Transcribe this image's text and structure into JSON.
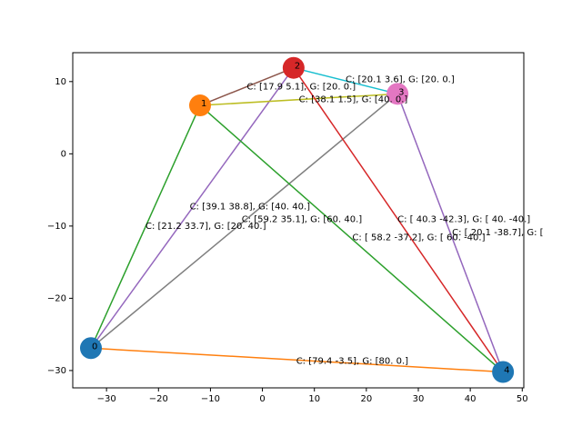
{
  "chart_data": {
    "type": "scatter",
    "title": "",
    "xlabel": "",
    "ylabel": "",
    "xlim": [
      -36.5,
      50.3
    ],
    "ylim": [
      -32.4,
      14.0
    ],
    "xticks": [
      -30,
      -20,
      -10,
      0,
      10,
      20,
      30,
      40,
      50
    ],
    "yticks": [
      10,
      0,
      -10,
      -20,
      -30
    ],
    "grid": false,
    "nodes": [
      {
        "id": "0",
        "x": -33.0,
        "y": -26.9,
        "color": "#1f77b4"
      },
      {
        "id": "1",
        "x": -12.0,
        "y": 6.7,
        "color": "#ff7f0e"
      },
      {
        "id": "2",
        "x": 6.0,
        "y": 11.9,
        "color": "#d62728"
      },
      {
        "id": "3",
        "x": 26.0,
        "y": 8.3,
        "color": "#e377c2"
      },
      {
        "id": "4",
        "x": 46.3,
        "y": -30.2,
        "color": "#1f77b4"
      }
    ],
    "edges": [
      {
        "from": "0",
        "to": "1",
        "color": "#2ca02c"
      },
      {
        "from": "0",
        "to": "2",
        "color": "#9467bd"
      },
      {
        "from": "0",
        "to": "3",
        "color": "#7f7f7f"
      },
      {
        "from": "0",
        "to": "4",
        "color": "#ff7f0e"
      },
      {
        "from": "1",
        "to": "2",
        "color": "#8c564b"
      },
      {
        "from": "1",
        "to": "3",
        "color": "#bcbd22"
      },
      {
        "from": "1",
        "to": "4",
        "color": "#2ca02c"
      },
      {
        "from": "2",
        "to": "3",
        "color": "#17becf"
      },
      {
        "from": "2",
        "to": "4",
        "color": "#d62728"
      },
      {
        "from": "3",
        "to": "4",
        "color": "#9467bd"
      }
    ],
    "annotations": [
      {
        "text": "C: [17.9  5.1], G: [20.  0.]",
        "x": -3.0,
        "y": 9.3
      },
      {
        "text": "C: [20.1  3.6], G: [20.  0.]",
        "x": 16.0,
        "y": 10.3
      },
      {
        "text": "C: [38.1  1.5], G: [40.  0.]",
        "x": 7.0,
        "y": 7.5
      },
      {
        "text": "C: [39.1 38.8], G: [40. 40.]",
        "x": -14.0,
        "y": -7.3
      },
      {
        "text": "C: [59.2 35.1], G: [60. 40.]",
        "x": -4.0,
        "y": -9.1
      },
      {
        "text": "C: [21.2 33.7], G: [20. 40.]",
        "x": -22.5,
        "y": -10.0
      },
      {
        "text": "C: [ 40.3 -42.3], G: [ 40. -40.]",
        "x": 26.0,
        "y": -9.1
      },
      {
        "text": "C: [ 20.1 -38.7], G: [",
        "x": 36.5,
        "y": -10.9
      },
      {
        "text": "C: [ 58.2 -37.2], G: [ 60. -40.]",
        "x": 17.3,
        "y": -11.6
      },
      {
        "text": "C: [79.4 -3.5], G: [80.  0.]",
        "x": 6.5,
        "y": -28.7
      }
    ]
  }
}
